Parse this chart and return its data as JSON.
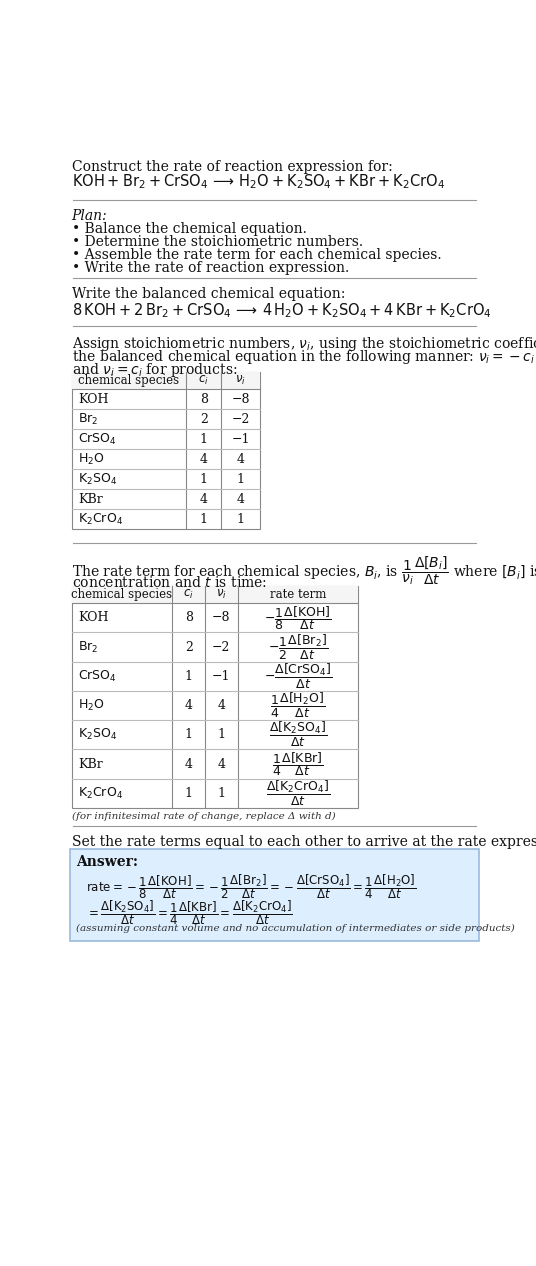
{
  "bg_color": "#ffffff",
  "title_line1": "Construct the rate of reaction expression for:",
  "plan_title": "Plan:",
  "plan_items": [
    "• Balance the chemical equation.",
    "• Determine the stoichiometric numbers.",
    "• Assemble the rate term for each chemical species.",
    "• Write the rate of reaction expression."
  ],
  "balanced_label": "Write the balanced chemical equation:",
  "infinitesimal_note": "(for infinitesimal rate of change, replace Δ with d)",
  "set_rate_text": "Set the rate terms equal to each other to arrive at the rate expression:",
  "answer_label": "Answer:",
  "answer_note": "(assuming constant volume and no accumulation of intermediates or side products)",
  "answer_bg": "#ddeeff",
  "answer_border": "#99bbdd",
  "species_math": [
    "KOH",
    "$\\mathrm{Br_2}$",
    "$\\mathrm{CrSO_4}$",
    "$\\mathrm{H_2O}$",
    "$\\mathrm{K_2SO_4}$",
    "KBr",
    "$\\mathrm{K_2CrO_4}$"
  ],
  "ci_vals": [
    "8",
    "2",
    "1",
    "4",
    "1",
    "4",
    "1"
  ],
  "nu_vals": [
    "−8",
    "−2",
    "−1",
    "4",
    "1",
    "4",
    "1"
  ]
}
